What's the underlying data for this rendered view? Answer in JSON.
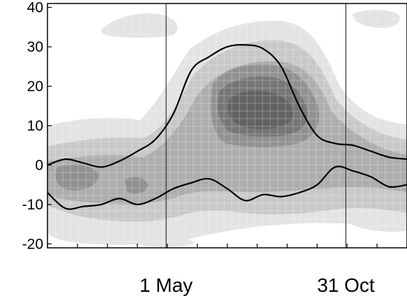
{
  "chart_data": {
    "type": "area",
    "title": "",
    "xlabel": "",
    "ylabel": "",
    "ylim": [
      -21,
      41
    ],
    "yticks": [
      40,
      30,
      20,
      10,
      0,
      -10,
      -20
    ],
    "xlim": [
      0,
      1
    ],
    "xtick_count": 13,
    "date_markers": [
      {
        "label": "1 May",
        "x": 0.33
      },
      {
        "label": "31 Oct",
        "x": 0.83
      }
    ],
    "grid": false,
    "shading_levels": [
      {
        "level": 1,
        "color": "#e3e3e3"
      },
      {
        "level": 2,
        "color": "#c8c8c8"
      },
      {
        "level": 3,
        "color": "#adadad"
      },
      {
        "level": 4,
        "color": "#919191"
      },
      {
        "level": 5,
        "color": "#767676"
      },
      {
        "level": 6,
        "color": "#626262"
      }
    ],
    "series": [
      {
        "x": [
          0.0,
          0.05,
          0.1,
          0.15,
          0.2,
          0.25,
          0.3,
          0.35,
          0.4,
          0.45,
          0.5,
          0.55,
          0.6,
          0.65,
          0.7,
          0.75,
          0.8,
          0.85,
          0.9,
          0.95,
          1.0
        ],
        "values": [
          0,
          1.5,
          0.5,
          -0.5,
          1,
          3.5,
          6.5,
          13,
          24,
          27.5,
          30,
          30.5,
          29.5,
          25,
          15,
          7.5,
          5.5,
          5,
          3.5,
          2,
          1.5
        ]
      },
      {
        "x": [
          0.0,
          0.05,
          0.1,
          0.15,
          0.2,
          0.25,
          0.3,
          0.35,
          0.4,
          0.45,
          0.5,
          0.55,
          0.6,
          0.65,
          0.7,
          0.75,
          0.8,
          0.85,
          0.9,
          0.95,
          1.0
        ],
        "values": [
          -7,
          -11,
          -10.5,
          -10,
          -8.5,
          -10,
          -8.5,
          -6,
          -4.5,
          -3.5,
          -6,
          -9,
          -7.5,
          -8,
          -7,
          -5,
          -0.5,
          -1.5,
          -3,
          -5.5,
          -5
        ]
      }
    ]
  }
}
